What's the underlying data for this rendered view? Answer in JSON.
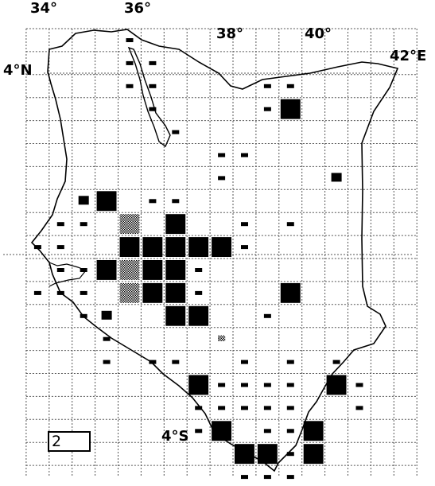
{
  "map": {
    "coordinate_labels": {
      "lon_34": "34°",
      "lon_36": "36°",
      "lon_38": "38°",
      "lon_40": "40°",
      "lon_42": "42°E",
      "lat_4n": "4°N",
      "lat_4s": "4°S"
    },
    "panel_label": "2",
    "colors": {
      "ink": "#000000",
      "stipple": "#888888",
      "grid": "#555555",
      "background": "#ffffff"
    },
    "legend_note": "",
    "symbols": [
      "small-record-square",
      "large-record-square",
      "stippled-square"
    ]
  }
}
